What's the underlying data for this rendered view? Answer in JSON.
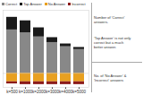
{
  "chart_data": {
    "type": "bar",
    "stacked": true,
    "categories": [
      "k=500",
      "k=1000",
      "k=2000",
      "k=3000",
      "k=4000",
      "k=5000"
    ],
    "series": [
      {
        "name": "Correct",
        "color": "#888888",
        "values": [
          62,
          58,
          52,
          44,
          38,
          34
        ]
      },
      {
        "name": "Top Answer",
        "color": "#1a1a1a",
        "values": [
          18,
          17,
          13,
          7,
          4,
          3
        ]
      },
      {
        "name": "No Answer",
        "color": "#E8A020",
        "values": [
          -12,
          -12,
          -12,
          -12,
          -12,
          -12
        ]
      },
      {
        "name": "Incorrect",
        "color": "#8B1A1A",
        "values": [
          -3,
          -4,
          -4,
          -4,
          -4,
          -4
        ]
      }
    ],
    "ylim": [
      -20,
      90
    ],
    "tick_labels": "x",
    "legend": "upper left",
    "annotations": [
      "Number of 'Correct'\nanswers.",
      "'Top Answer' is not only\ncorrect but a much\nbetter answer.",
      "No. of 'No Answer' &\n'Incorrect' answers"
    ]
  }
}
